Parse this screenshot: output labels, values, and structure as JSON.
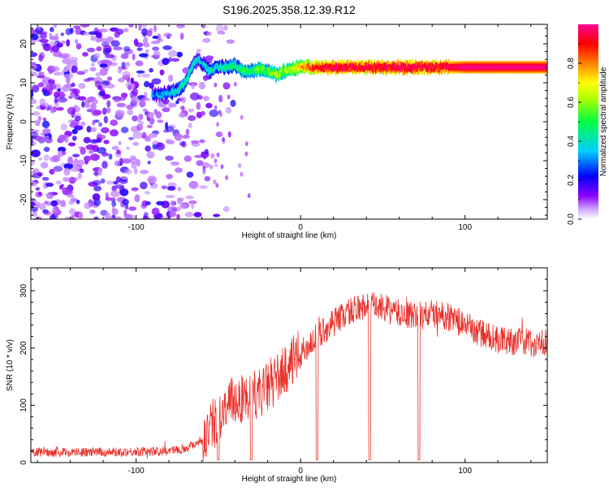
{
  "title": "S196.2025.358.12.39.R12",
  "chart_data": [
    {
      "type": "heatmap",
      "xlabel": "Height of straight line (km)",
      "ylabel": "Frequency (Hz)",
      "xlim": [
        -164,
        150
      ],
      "ylim": [
        -25,
        25
      ],
      "x_ticks": [
        -100,
        0,
        100
      ],
      "y_ticks": [
        -20,
        -10,
        0,
        10,
        20
      ],
      "colorbar": {
        "label": "Normalized spectral amplitude",
        "range": [
          0,
          1
        ],
        "ticks": [
          0,
          0.2,
          0.4,
          0.6,
          0.8
        ],
        "colormap": [
          "#ffffff",
          "#8a00ff",
          "#0000ff",
          "#00d0ff",
          "#00ff40",
          "#ffff00",
          "#ff8000",
          "#ff0000",
          "#ff0090"
        ]
      },
      "ridge": {
        "description_values_only": true,
        "x": [
          -90,
          -85,
          -80,
          -75,
          -70,
          -65,
          -62,
          -55,
          -50,
          -45,
          -40,
          -35,
          -30,
          -25,
          -20,
          -15,
          -10,
          -5,
          0,
          10,
          20,
          40,
          60,
          80,
          90,
          100,
          120,
          150
        ],
        "y": [
          7,
          7,
          7.5,
          8,
          10,
          15,
          16,
          13,
          14,
          14,
          14.5,
          13,
          13,
          13.5,
          13,
          12,
          13,
          13.5,
          14,
          14,
          14,
          14,
          14,
          14,
          14,
          14,
          14,
          14
        ],
        "amplitude": [
          0.25,
          0.3,
          0.3,
          0.35,
          0.4,
          0.35,
          0.3,
          0.35,
          0.35,
          0.4,
          0.4,
          0.45,
          0.45,
          0.5,
          0.5,
          0.55,
          0.55,
          0.6,
          0.7,
          0.85,
          0.9,
          0.88,
          0.9,
          0.88,
          0.9,
          0.95,
          0.95,
          0.95
        ]
      },
      "noise_region_x": [
        -164,
        -60
      ]
    },
    {
      "type": "line",
      "xlabel": "Height of straight line (km)",
      "ylabel": "SNR (10 * v/v)",
      "xlim": [
        -164,
        150
      ],
      "ylim": [
        0,
        340
      ],
      "x_ticks": [
        -100,
        0,
        100
      ],
      "y_ticks": [
        0,
        100,
        200,
        300
      ],
      "color": "#e8302a",
      "trend": {
        "x": [
          -164,
          -120,
          -80,
          -70,
          -60,
          -50,
          -40,
          -30,
          -20,
          -10,
          0,
          10,
          20,
          30,
          40,
          50,
          60,
          70,
          80,
          90,
          100,
          110,
          120,
          130,
          140,
          150
        ],
        "y": [
          18,
          18,
          20,
          25,
          40,
          80,
          110,
          115,
          130,
          160,
          190,
          220,
          245,
          265,
          275,
          270,
          260,
          255,
          260,
          255,
          240,
          225,
          215,
          212,
          210,
          208
        ]
      },
      "dropouts": [
        {
          "x": -50,
          "y": 5
        },
        {
          "x": -30,
          "y": 5
        },
        {
          "x": 10,
          "y": 5
        },
        {
          "x": 42,
          "y": 5
        },
        {
          "x": 72,
          "y": 5
        }
      ]
    }
  ]
}
